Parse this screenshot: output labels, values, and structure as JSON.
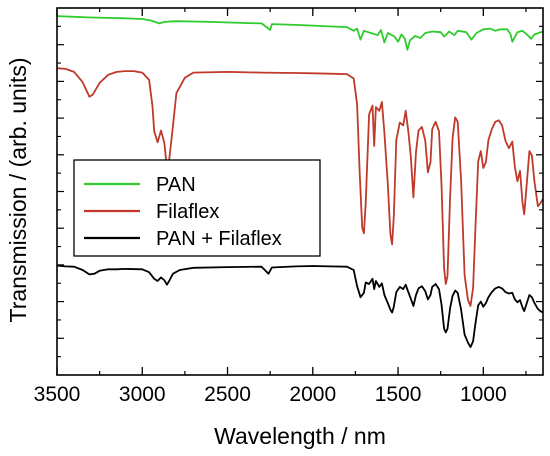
{
  "chart_data": {
    "type": "line",
    "xlabel": "Wavelength / nm",
    "ylabel": "Transmission / (arb. units)",
    "xlim": [
      3500,
      650
    ],
    "x_reversed": true,
    "ylim": [
      0,
      100
    ],
    "x_ticks": [
      3500,
      3000,
      2500,
      2000,
      1500,
      1000
    ],
    "grid": false,
    "legend_position": "left-middle",
    "series": [
      {
        "name": "PAN",
        "color": "#2ecc2e",
        "points": [
          [
            3500,
            97.8
          ],
          [
            3400,
            97.6
          ],
          [
            3300,
            97.4
          ],
          [
            3200,
            97.3
          ],
          [
            3100,
            97.2
          ],
          [
            3000,
            97.0
          ],
          [
            2950,
            96.6
          ],
          [
            2900,
            95.8
          ],
          [
            2870,
            96.2
          ],
          [
            2800,
            96.4
          ],
          [
            2600,
            96.2
          ],
          [
            2400,
            95.9
          ],
          [
            2300,
            95.8
          ],
          [
            2250,
            94.0
          ],
          [
            2240,
            95.6
          ],
          [
            2100,
            95.4
          ],
          [
            2000,
            95.2
          ],
          [
            1900,
            95.0
          ],
          [
            1800,
            94.8
          ],
          [
            1760,
            93.8
          ],
          [
            1740,
            94.4
          ],
          [
            1720,
            91.4
          ],
          [
            1700,
            93.8
          ],
          [
            1660,
            93.2
          ],
          [
            1620,
            92.6
          ],
          [
            1600,
            94.0
          ],
          [
            1580,
            90.6
          ],
          [
            1560,
            93.2
          ],
          [
            1520,
            92.2
          ],
          [
            1500,
            90.8
          ],
          [
            1480,
            92.8
          ],
          [
            1460,
            91.6
          ],
          [
            1445,
            88.6
          ],
          [
            1430,
            91.2
          ],
          [
            1400,
            92.4
          ],
          [
            1370,
            91.8
          ],
          [
            1340,
            93.2
          ],
          [
            1300,
            93.6
          ],
          [
            1250,
            93.4
          ],
          [
            1230,
            92.2
          ],
          [
            1200,
            93.6
          ],
          [
            1170,
            92.6
          ],
          [
            1150,
            93.8
          ],
          [
            1100,
            93.4
          ],
          [
            1070,
            91.4
          ],
          [
            1040,
            93.2
          ],
          [
            1000,
            94.2
          ],
          [
            960,
            94.4
          ],
          [
            930,
            93.8
          ],
          [
            900,
            94.2
          ],
          [
            860,
            94.2
          ],
          [
            840,
            92.8
          ],
          [
            830,
            90.8
          ],
          [
            800,
            93.4
          ],
          [
            770,
            93.8
          ],
          [
            740,
            92.6
          ],
          [
            720,
            91.6
          ],
          [
            700,
            92.8
          ],
          [
            650,
            93.6
          ]
        ]
      },
      {
        "name": "Filaflex",
        "color": "#c0392b",
        "points": [
          [
            3500,
            83.6
          ],
          [
            3450,
            83.4
          ],
          [
            3400,
            82.6
          ],
          [
            3350,
            79.8
          ],
          [
            3310,
            75.8
          ],
          [
            3290,
            76.4
          ],
          [
            3250,
            79.6
          ],
          [
            3200,
            81.8
          ],
          [
            3150,
            82.6
          ],
          [
            3100,
            82.8
          ],
          [
            3050,
            82.8
          ],
          [
            3000,
            82.4
          ],
          [
            2960,
            80.4
          ],
          [
            2940,
            73.2
          ],
          [
            2930,
            66.4
          ],
          [
            2910,
            63.4
          ],
          [
            2890,
            66.6
          ],
          [
            2870,
            63.2
          ],
          [
            2855,
            56.0
          ],
          [
            2845,
            57.4
          ],
          [
            2820,
            68.0
          ],
          [
            2800,
            76.8
          ],
          [
            2750,
            81.0
          ],
          [
            2700,
            82.4
          ],
          [
            2500,
            82.6
          ],
          [
            2300,
            82.4
          ],
          [
            2100,
            82.3
          ],
          [
            2000,
            82.2
          ],
          [
            1900,
            82.1
          ],
          [
            1800,
            82.0
          ],
          [
            1760,
            80.8
          ],
          [
            1740,
            73.8
          ],
          [
            1725,
            55.0
          ],
          [
            1710,
            40.2
          ],
          [
            1700,
            38.6
          ],
          [
            1690,
            46.8
          ],
          [
            1670,
            71.0
          ],
          [
            1650,
            73.4
          ],
          [
            1640,
            62.4
          ],
          [
            1630,
            73.0
          ],
          [
            1610,
            72.0
          ],
          [
            1595,
            74.4
          ],
          [
            1580,
            66.0
          ],
          [
            1560,
            52.0
          ],
          [
            1545,
            38.4
          ],
          [
            1535,
            35.6
          ],
          [
            1525,
            43.2
          ],
          [
            1510,
            64.0
          ],
          [
            1490,
            68.8
          ],
          [
            1470,
            68.0
          ],
          [
            1455,
            72.0
          ],
          [
            1440,
            66.4
          ],
          [
            1425,
            59.6
          ],
          [
            1410,
            48.4
          ],
          [
            1395,
            60.8
          ],
          [
            1380,
            66.6
          ],
          [
            1360,
            67.6
          ],
          [
            1340,
            63.8
          ],
          [
            1325,
            55.2
          ],
          [
            1310,
            58.0
          ],
          [
            1300,
            67.0
          ],
          [
            1280,
            69.0
          ],
          [
            1260,
            66.4
          ],
          [
            1245,
            52.0
          ],
          [
            1230,
            29.0
          ],
          [
            1220,
            24.8
          ],
          [
            1210,
            27.0
          ],
          [
            1195,
            48.4
          ],
          [
            1180,
            64.6
          ],
          [
            1165,
            70.2
          ],
          [
            1150,
            69.0
          ],
          [
            1130,
            53.0
          ],
          [
            1110,
            27.2
          ],
          [
            1090,
            20.4
          ],
          [
            1075,
            18.8
          ],
          [
            1060,
            23.8
          ],
          [
            1045,
            41.2
          ],
          [
            1030,
            58.2
          ],
          [
            1015,
            61.0
          ],
          [
            1000,
            56.4
          ],
          [
            985,
            58.0
          ],
          [
            970,
            64.0
          ],
          [
            950,
            67.0
          ],
          [
            930,
            69.0
          ],
          [
            910,
            69.4
          ],
          [
            890,
            68.0
          ],
          [
            870,
            63.8
          ],
          [
            850,
            61.8
          ],
          [
            830,
            63.6
          ],
          [
            815,
            56.6
          ],
          [
            800,
            52.8
          ],
          [
            785,
            55.6
          ],
          [
            770,
            47.0
          ],
          [
            760,
            43.8
          ],
          [
            745,
            52.2
          ],
          [
            730,
            61.0
          ],
          [
            715,
            59.8
          ],
          [
            700,
            52.6
          ],
          [
            680,
            46.0
          ],
          [
            665,
            46.8
          ],
          [
            650,
            48.0
          ]
        ]
      },
      {
        "name": "PAN + Filaflex",
        "color": "#000000",
        "points": [
          [
            3500,
            29.8
          ],
          [
            3450,
            29.6
          ],
          [
            3400,
            29.5
          ],
          [
            3350,
            28.6
          ],
          [
            3310,
            27.4
          ],
          [
            3280,
            27.6
          ],
          [
            3250,
            28.4
          ],
          [
            3200,
            28.8
          ],
          [
            3150,
            28.8
          ],
          [
            3100,
            28.9
          ],
          [
            3000,
            28.8
          ],
          [
            2960,
            28.0
          ],
          [
            2930,
            26.2
          ],
          [
            2910,
            25.6
          ],
          [
            2890,
            26.6
          ],
          [
            2870,
            25.8
          ],
          [
            2855,
            24.6
          ],
          [
            2840,
            25.8
          ],
          [
            2820,
            27.6
          ],
          [
            2780,
            28.6
          ],
          [
            2700,
            29.2
          ],
          [
            2500,
            29.4
          ],
          [
            2300,
            29.5
          ],
          [
            2260,
            27.6
          ],
          [
            2240,
            29.3
          ],
          [
            2100,
            29.6
          ],
          [
            2000,
            29.7
          ],
          [
            1900,
            29.6
          ],
          [
            1800,
            29.5
          ],
          [
            1760,
            28.6
          ],
          [
            1740,
            24.2
          ],
          [
            1720,
            21.2
          ],
          [
            1700,
            22.4
          ],
          [
            1690,
            25.2
          ],
          [
            1670,
            24.8
          ],
          [
            1650,
            26.2
          ],
          [
            1640,
            23.4
          ],
          [
            1630,
            25.6
          ],
          [
            1610,
            24.0
          ],
          [
            1595,
            25.0
          ],
          [
            1580,
            21.8
          ],
          [
            1560,
            19.6
          ],
          [
            1545,
            17.8
          ],
          [
            1535,
            17.0
          ],
          [
            1525,
            18.6
          ],
          [
            1510,
            22.6
          ],
          [
            1490,
            24.0
          ],
          [
            1470,
            23.4
          ],
          [
            1455,
            24.6
          ],
          [
            1440,
            22.6
          ],
          [
            1425,
            20.8
          ],
          [
            1410,
            18.8
          ],
          [
            1395,
            21.8
          ],
          [
            1380,
            23.6
          ],
          [
            1360,
            24.2
          ],
          [
            1340,
            22.8
          ],
          [
            1325,
            20.6
          ],
          [
            1310,
            21.8
          ],
          [
            1300,
            24.0
          ],
          [
            1280,
            24.8
          ],
          [
            1260,
            23.4
          ],
          [
            1245,
            19.2
          ],
          [
            1230,
            12.6
          ],
          [
            1220,
            11.6
          ],
          [
            1210,
            12.6
          ],
          [
            1195,
            18.2
          ],
          [
            1180,
            21.6
          ],
          [
            1165,
            23.0
          ],
          [
            1150,
            22.4
          ],
          [
            1130,
            17.8
          ],
          [
            1110,
            11.0
          ],
          [
            1090,
            8.8
          ],
          [
            1075,
            7.6
          ],
          [
            1060,
            9.2
          ],
          [
            1045,
            14.4
          ],
          [
            1030,
            19.0
          ],
          [
            1015,
            20.0
          ],
          [
            1000,
            18.6
          ],
          [
            985,
            19.6
          ],
          [
            970,
            21.2
          ],
          [
            950,
            22.6
          ],
          [
            930,
            23.6
          ],
          [
            910,
            24.0
          ],
          [
            890,
            23.6
          ],
          [
            870,
            22.6
          ],
          [
            850,
            22.2
          ],
          [
            830,
            22.4
          ],
          [
            815,
            20.6
          ],
          [
            800,
            19.8
          ],
          [
            785,
            20.4
          ],
          [
            770,
            18.4
          ],
          [
            760,
            17.4
          ],
          [
            745,
            19.6
          ],
          [
            730,
            21.8
          ],
          [
            715,
            21.2
          ],
          [
            700,
            19.6
          ],
          [
            680,
            18.0
          ],
          [
            665,
            17.4
          ],
          [
            650,
            17.0
          ]
        ]
      }
    ]
  }
}
